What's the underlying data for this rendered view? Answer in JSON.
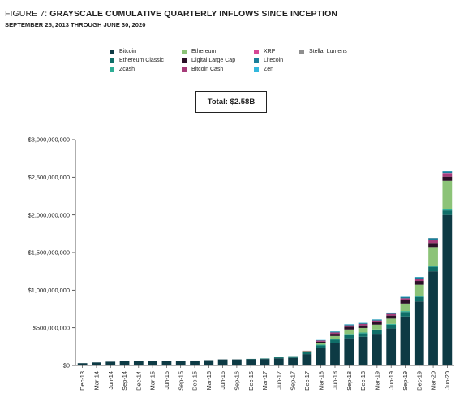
{
  "figure": {
    "label": "FIGURE 7: ",
    "title": "GRAYSCALE CUMULATIVE QUARTERLY INFLOWS SINCE INCEPTION",
    "subtitle": "SEPTEMBER 25, 2013 THROUGH JUNE 30, 2020"
  },
  "total_label": "Total: $2.58B",
  "chart_data": {
    "type": "bar",
    "stacked": true,
    "title": "GRAYSCALE CUMULATIVE QUARTERLY INFLOWS SINCE INCEPTION",
    "subtitle": "SEPTEMBER 25, 2013 THROUGH JUNE 30, 2020",
    "xlabel": "",
    "ylabel": "",
    "ylim": [
      0,
      3000000000
    ],
    "yticks": [
      0,
      500000000,
      1000000000,
      1500000000,
      2000000000,
      2500000000,
      3000000000
    ],
    "ytick_labels": [
      "$0",
      "$500,000,000",
      "$1,000,000,000",
      "$1,500,000,000",
      "$2,000,000,000",
      "$2,500,000,000",
      "$3,000,000,000"
    ],
    "grid": false,
    "legend_position": "top",
    "categories": [
      "Dec-13",
      "Mar-14",
      "Jun-14",
      "Sep-14",
      "Dec-14",
      "Mar-15",
      "Jun-15",
      "Sep-15",
      "Dec-15",
      "Mar-16",
      "Jun-16",
      "Sep-16",
      "Dec-16",
      "Mar-17",
      "Jun-17",
      "Sep-17",
      "Dec-17",
      "Mar-18",
      "Jun-18",
      "Sep-18",
      "Dec-18",
      "Mar-19",
      "Jun-19",
      "Sep-19",
      "Dec-19",
      "Mar-20",
      "Jun-20"
    ],
    "series": [
      {
        "name": "Bitcoin",
        "color": "#0d3a44",
        "values": [
          30000000,
          40000000,
          50000000,
          55000000,
          60000000,
          60000000,
          62000000,
          62000000,
          65000000,
          70000000,
          80000000,
          80000000,
          82000000,
          85000000,
          95000000,
          100000000,
          150000000,
          230000000,
          300000000,
          360000000,
          380000000,
          420000000,
          490000000,
          650000000,
          850000000,
          1250000000,
          2000000000
        ]
      },
      {
        "name": "Ethereum Classic",
        "color": "#0f6e68",
        "values": [
          0,
          0,
          0,
          0,
          0,
          0,
          0,
          0,
          0,
          0,
          0,
          0,
          5000000,
          7000000,
          12000000,
          12000000,
          25000000,
          35000000,
          40000000,
          45000000,
          45000000,
          45000000,
          50000000,
          60000000,
          60000000,
          60000000,
          60000000
        ]
      },
      {
        "name": "Zcash",
        "color": "#2fae96",
        "values": [
          0,
          0,
          0,
          0,
          0,
          0,
          0,
          0,
          0,
          0,
          0,
          0,
          0,
          0,
          0,
          0,
          5000000,
          10000000,
          10000000,
          12000000,
          12000000,
          12000000,
          12000000,
          12000000,
          12000000,
          12000000,
          12000000
        ]
      },
      {
        "name": "Ethereum",
        "color": "#8cc378",
        "values": [
          0,
          0,
          0,
          0,
          0,
          0,
          0,
          0,
          0,
          0,
          0,
          0,
          0,
          0,
          0,
          0,
          10000000,
          25000000,
          40000000,
          60000000,
          60000000,
          65000000,
          70000000,
          100000000,
          150000000,
          250000000,
          380000000
        ]
      },
      {
        "name": "Digital Large Cap",
        "color": "#2b1027",
        "values": [
          0,
          0,
          0,
          0,
          0,
          0,
          0,
          0,
          0,
          0,
          0,
          0,
          0,
          0,
          0,
          0,
          0,
          15000000,
          30000000,
          35000000,
          35000000,
          35000000,
          40000000,
          45000000,
          50000000,
          55000000,
          55000000
        ]
      },
      {
        "name": "Bitcoin Cash",
        "color": "#a63b79",
        "values": [
          0,
          0,
          0,
          0,
          0,
          0,
          0,
          0,
          0,
          0,
          0,
          0,
          0,
          0,
          0,
          0,
          5000000,
          15000000,
          18000000,
          20000000,
          20000000,
          20000000,
          22000000,
          25000000,
          30000000,
          35000000,
          40000000
        ]
      },
      {
        "name": "XRP",
        "color": "#d64895",
        "values": [
          0,
          0,
          0,
          0,
          0,
          0,
          0,
          0,
          0,
          0,
          0,
          0,
          0,
          0,
          0,
          0,
          0,
          0,
          0,
          0,
          0,
          0,
          0,
          0,
          0,
          5000000,
          8000000
        ]
      },
      {
        "name": "Litecoin",
        "color": "#1a7f9a",
        "values": [
          0,
          0,
          0,
          0,
          0,
          0,
          0,
          0,
          0,
          0,
          0,
          0,
          0,
          0,
          0,
          0,
          0,
          5000000,
          10000000,
          12000000,
          12000000,
          12000000,
          15000000,
          18000000,
          20000000,
          22000000,
          22000000
        ]
      },
      {
        "name": "Zen",
        "color": "#33b8dd",
        "values": [
          0,
          0,
          0,
          0,
          0,
          0,
          0,
          0,
          0,
          0,
          0,
          0,
          0,
          0,
          0,
          0,
          0,
          2000000,
          3000000,
          3000000,
          3000000,
          3000000,
          3000000,
          3000000,
          3000000,
          3000000,
          3000000
        ]
      },
      {
        "name": "Stellar Lumens",
        "color": "#8e8e8e",
        "values": [
          0,
          0,
          0,
          0,
          0,
          0,
          0,
          0,
          0,
          0,
          0,
          0,
          0,
          0,
          0,
          0,
          0,
          0,
          0,
          0,
          0,
          0,
          0,
          0,
          0,
          2000000,
          3000000
        ]
      }
    ]
  }
}
